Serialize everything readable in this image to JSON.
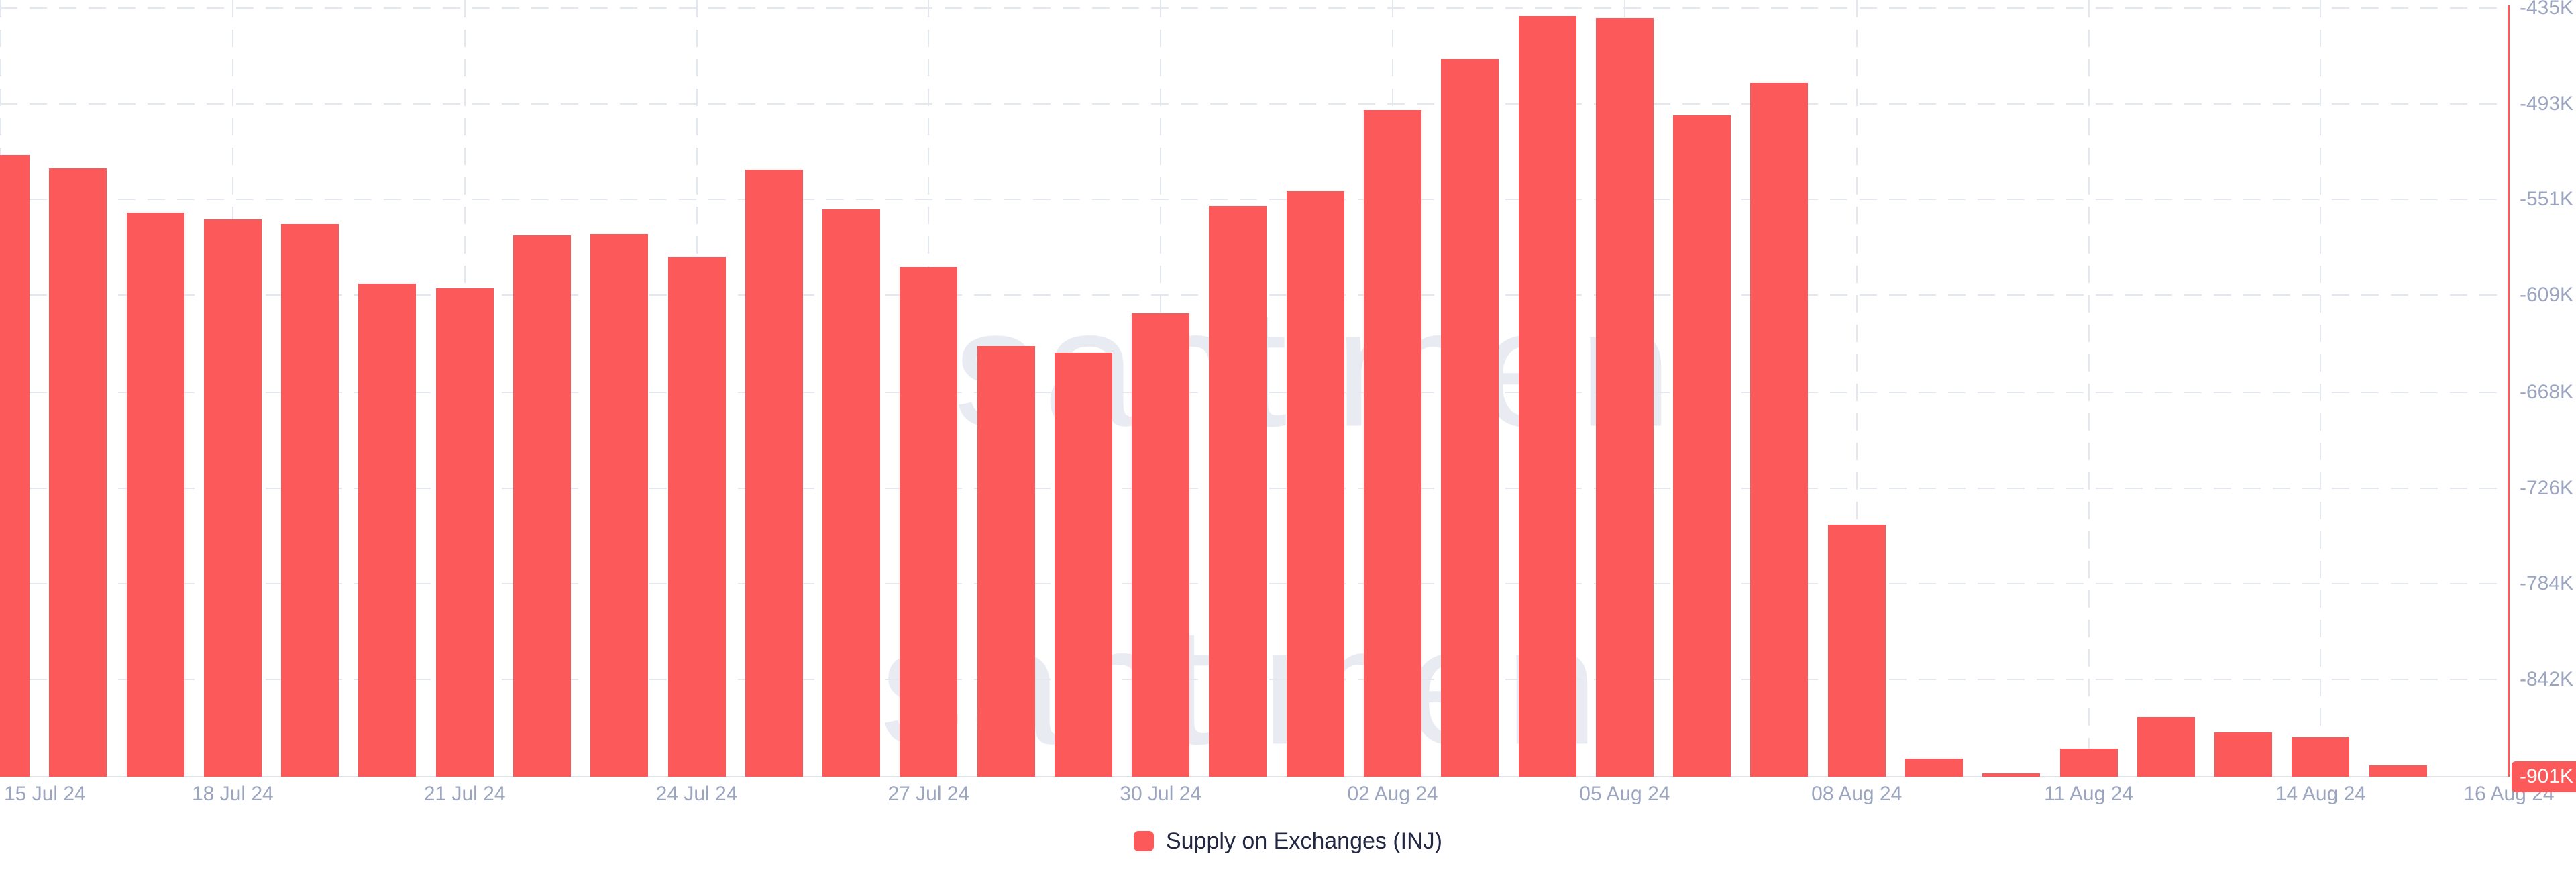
{
  "chart_data": {
    "type": "bar",
    "title": "",
    "legend_position": "bottom-center",
    "grid": "dashed",
    "watermark": "santiment",
    "categories": [
      "15 Jul 24",
      "16 Jul 24",
      "17 Jul 24",
      "18 Jul 24",
      "19 Jul 24",
      "20 Jul 24",
      "21 Jul 24",
      "22 Jul 24",
      "23 Jul 24",
      "24 Jul 24",
      "25 Jul 24",
      "26 Jul 24",
      "27 Jul 24",
      "28 Jul 24",
      "29 Jul 24",
      "30 Jul 24",
      "31 Jul 24",
      "01 Aug 24",
      "02 Aug 24",
      "03 Aug 24",
      "04 Aug 24",
      "05 Aug 24",
      "06 Aug 24",
      "07 Aug 24",
      "08 Aug 24",
      "09 Aug 24",
      "10 Aug 24",
      "11 Aug 24",
      "12 Aug 24",
      "13 Aug 24",
      "14 Aug 24",
      "15 Aug 24",
      "16 Aug 24"
    ],
    "series": [
      {
        "name": "Supply on Exchanges (INJ)",
        "unit": "INJ",
        "values_thousands": [
          -524,
          -532,
          -559,
          -563,
          -566,
          -602,
          -605,
          -573,
          -572,
          -586,
          -533,
          -557,
          -592,
          -640,
          -644,
          -620,
          -555,
          -546,
          -497,
          -466,
          -440,
          -441,
          -500,
          -480,
          -748,
          -890,
          -899,
          -884,
          -865,
          -874,
          -877,
          -894,
          -901
        ]
      }
    ],
    "ylim_thousands": [
      -901,
      -435
    ],
    "y_ticks": [
      {
        "value_thousands": -435,
        "label": "-435K"
      },
      {
        "value_thousands": -493,
        "label": "-493K"
      },
      {
        "value_thousands": -551,
        "label": "-551K"
      },
      {
        "value_thousands": -609,
        "label": "-609K"
      },
      {
        "value_thousands": -668,
        "label": "-668K"
      },
      {
        "value_thousands": -726,
        "label": "-726K"
      },
      {
        "value_thousands": -784,
        "label": "-784K"
      },
      {
        "value_thousands": -842,
        "label": "-842K"
      }
    ],
    "baseline_thousands": -901,
    "latest_value_badge": "-901K",
    "x_ticks": [
      {
        "label": "15 Jul 24",
        "index": 0
      },
      {
        "label": "18 Jul 24",
        "index": 3
      },
      {
        "label": "21 Jul 24",
        "index": 6
      },
      {
        "label": "24 Jul 24",
        "index": 9
      },
      {
        "label": "27 Jul 24",
        "index": 12
      },
      {
        "label": "30 Jul 24",
        "index": 15
      },
      {
        "label": "02 Aug 24",
        "index": 18
      },
      {
        "label": "05 Aug 24",
        "index": 21
      },
      {
        "label": "08 Aug 24",
        "index": 24
      },
      {
        "label": "11 Aug 24",
        "index": 27
      },
      {
        "label": "14 Aug 24",
        "index": 30
      },
      {
        "label": "16 Aug 24",
        "index": 32
      }
    ]
  },
  "colors": {
    "bar": "#FC5A5A",
    "axis_line": "#FC5A5A",
    "grid": "#E3E7F0",
    "baseline": "#DFE3EE",
    "tick_text": "#9BA5C0",
    "legend_text": "#232842",
    "badge_background": "#FC5A5A",
    "badge_text": "#FFFFFF",
    "watermark": "#E9EBF3",
    "background": "#FFFFFF"
  }
}
